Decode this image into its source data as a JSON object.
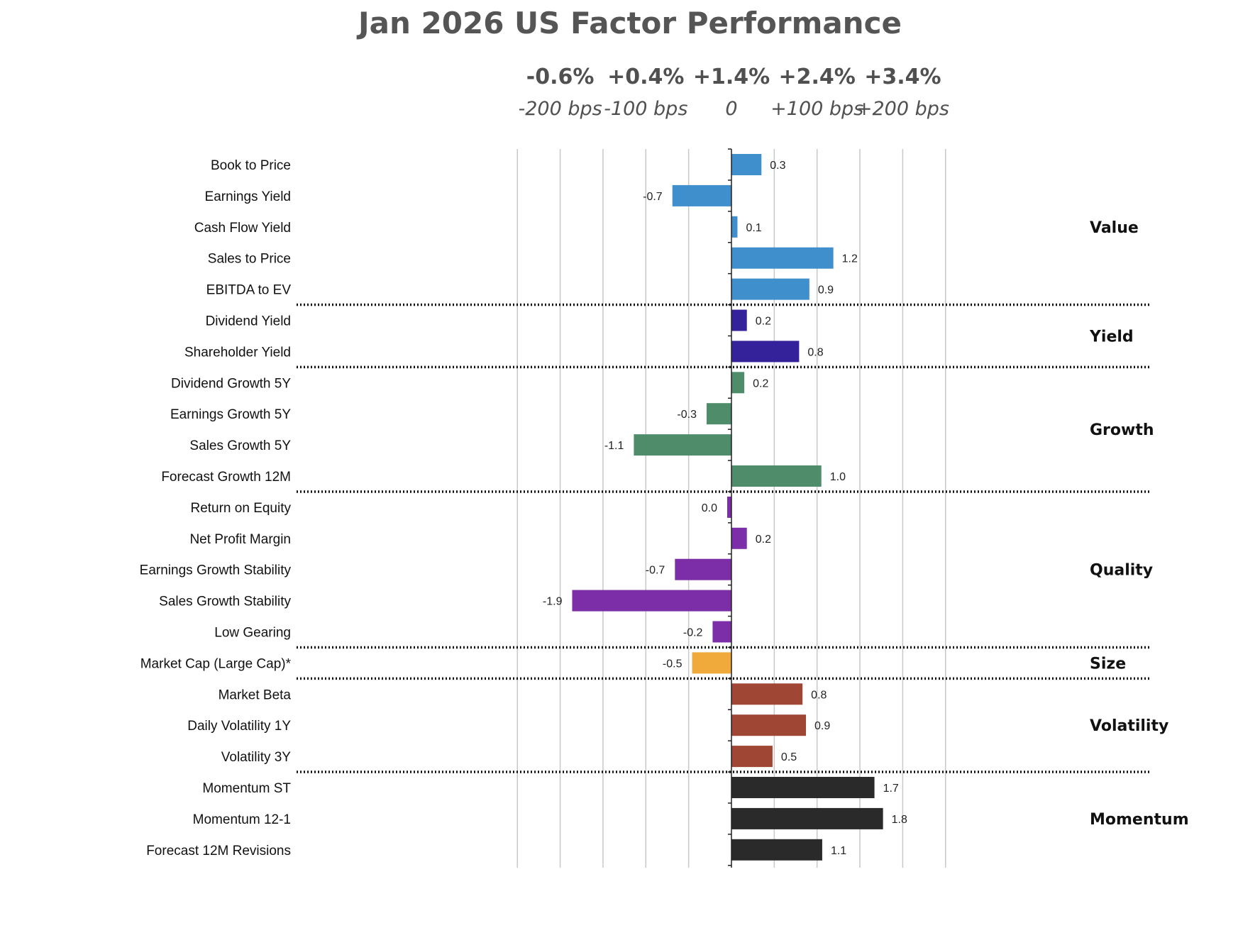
{
  "chart_data": {
    "type": "bar",
    "orientation": "horizontal",
    "title": "Jan 2026 US Factor Performance",
    "xlim": [
      -2.5,
      2.5
    ],
    "grid": true,
    "top_axis": [
      {
        "pct": "-0.6%",
        "bps": "-200 bps",
        "value": -2
      },
      {
        "pct": "+0.4%",
        "bps": "-100 bps",
        "value": -1
      },
      {
        "pct": "+1.4%",
        "bps": "0",
        "value": 0
      },
      {
        "pct": "+2.4%",
        "bps": "+100 bps",
        "value": 1
      },
      {
        "pct": "+3.4%",
        "bps": "+200 bps",
        "value": 2
      }
    ],
    "groups": [
      {
        "name": "Value",
        "color": "#3f8fcc",
        "factors": [
          {
            "label": "Book to Price",
            "value": 0.35,
            "text": "0.3"
          },
          {
            "label": "Earnings Yield",
            "value": -0.69,
            "text": "-0.7"
          },
          {
            "label": "Cash Flow Yield",
            "value": 0.07,
            "text": "0.1"
          },
          {
            "label": "Sales to Price",
            "value": 1.19,
            "text": "1.2"
          },
          {
            "label": "EBITDA to EV",
            "value": 0.91,
            "text": "0.9"
          }
        ]
      },
      {
        "name": "Yield",
        "color": "#33229a",
        "factors": [
          {
            "label": "Dividend Yield",
            "value": 0.18,
            "text": "0.2"
          },
          {
            "label": "Shareholder Yield",
            "value": 0.79,
            "text": "0.8"
          }
        ]
      },
      {
        "name": "Growth",
        "color": "#4e8c6a",
        "factors": [
          {
            "label": "Dividend Growth 5Y",
            "value": 0.15,
            "text": "0.2"
          },
          {
            "label": "Earnings Growth 5Y",
            "value": -0.29,
            "text": "-0.3"
          },
          {
            "label": "Sales Growth 5Y",
            "value": -1.14,
            "text": "-1.1"
          },
          {
            "label": "Forecast Growth 12M",
            "value": 1.05,
            "text": "1.0"
          }
        ]
      },
      {
        "name": "Quality",
        "color": "#7b2ea8",
        "factors": [
          {
            "label": "Return on Equity",
            "value": -0.03,
            "text": "0.0"
          },
          {
            "label": "Net Profit Margin",
            "value": 0.18,
            "text": "0.2"
          },
          {
            "label": "Earnings Growth Stability",
            "value": -0.66,
            "text": "-0.7"
          },
          {
            "label": "Sales Growth Stability",
            "value": -1.86,
            "text": "-1.9"
          },
          {
            "label": "Low Gearing",
            "value": -0.22,
            "text": "-0.2"
          }
        ]
      },
      {
        "name": "Size",
        "color": "#f0aa3c",
        "factors": [
          {
            "label": "Market Cap (Large Cap)*",
            "value": -0.46,
            "text": "-0.5"
          }
        ]
      },
      {
        "name": "Volatility",
        "color": "#a04634",
        "factors": [
          {
            "label": "Market Beta",
            "value": 0.83,
            "text": "0.8"
          },
          {
            "label": "Daily Volatility 1Y",
            "value": 0.87,
            "text": "0.9"
          },
          {
            "label": "Volatility 3Y",
            "value": 0.48,
            "text": "0.5"
          }
        ]
      },
      {
        "name": "Momentum",
        "color": "#2a2a2a",
        "factors": [
          {
            "label": "Momentum ST",
            "value": 1.67,
            "text": "1.7"
          },
          {
            "label": "Momentum 12-1",
            "value": 1.77,
            "text": "1.8"
          },
          {
            "label": "Forecast 12M Revisions",
            "value": 1.06,
            "text": "1.1"
          }
        ]
      }
    ]
  }
}
